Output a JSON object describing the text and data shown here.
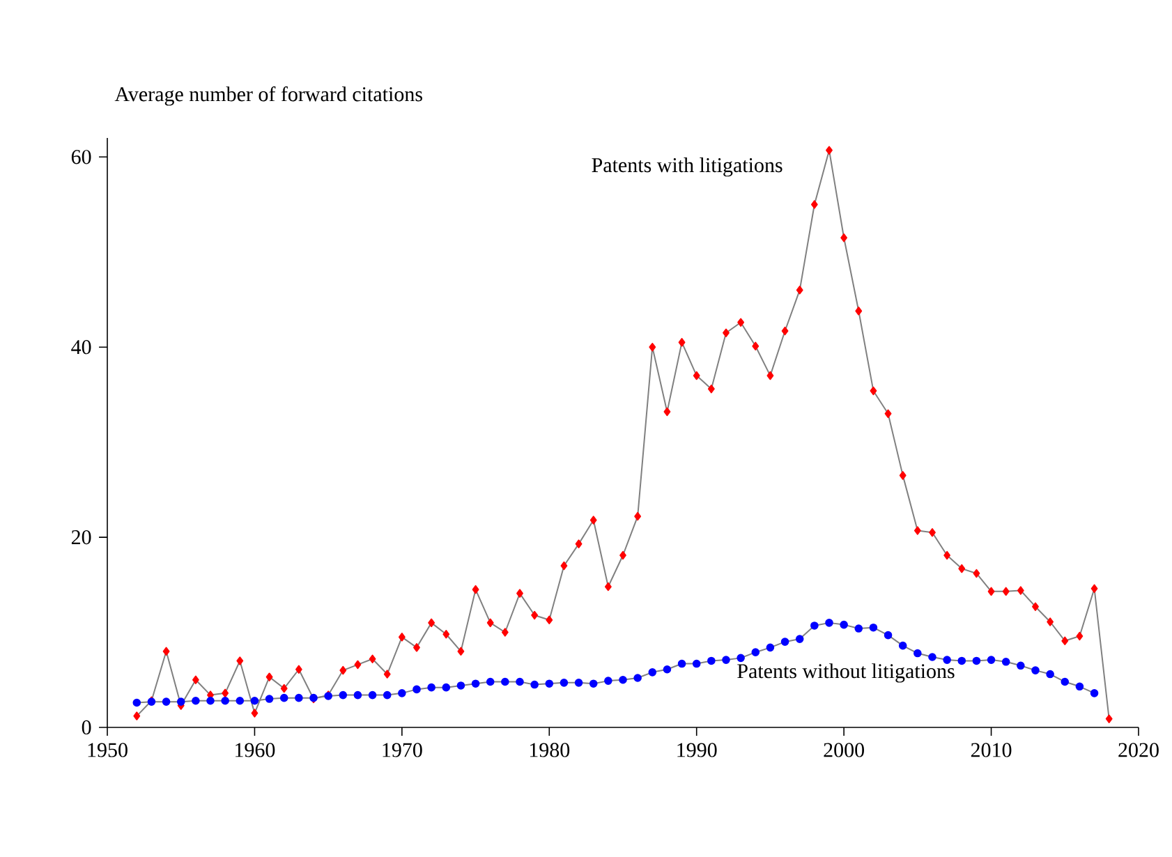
{
  "chart_data": {
    "type": "line",
    "ylabel": "Average number of forward citations",
    "x": [
      1952,
      1953,
      1954,
      1955,
      1956,
      1957,
      1958,
      1959,
      1960,
      1961,
      1962,
      1963,
      1964,
      1965,
      1966,
      1967,
      1968,
      1969,
      1970,
      1971,
      1972,
      1973,
      1974,
      1975,
      1976,
      1977,
      1978,
      1979,
      1980,
      1981,
      1982,
      1983,
      1984,
      1985,
      1986,
      1987,
      1988,
      1989,
      1990,
      1991,
      1992,
      1993,
      1994,
      1995,
      1996,
      1997,
      1998,
      1999,
      2000,
      2001,
      2002,
      2003,
      2004,
      2005,
      2006,
      2007,
      2008,
      2009,
      2010,
      2011,
      2012,
      2013,
      2014,
      2015,
      2016,
      2017,
      2018
    ],
    "series": [
      {
        "name": "Patents with litigations",
        "color": "#ff0000",
        "marker": "diamond",
        "values": [
          1.2,
          2.8,
          8.0,
          2.3,
          5.0,
          3.4,
          3.6,
          7.0,
          1.5,
          5.3,
          4.1,
          6.1,
          3.0,
          3.4,
          6.0,
          6.6,
          7.2,
          5.6,
          9.5,
          8.4,
          11.0,
          9.8,
          8.0,
          14.5,
          11.0,
          10.0,
          14.1,
          11.8,
          11.3,
          17.0,
          19.3,
          21.8,
          14.8,
          18.1,
          22.2,
          40.0,
          33.2,
          40.5,
          37.0,
          35.6,
          41.5,
          42.6,
          40.1,
          37.0,
          41.7,
          46.0,
          55.0,
          60.7,
          51.5,
          43.8,
          35.4,
          33.0,
          26.5,
          20.7,
          20.5,
          18.1,
          16.7,
          16.2,
          14.3,
          14.3,
          14.4,
          12.7,
          11.1,
          9.1,
          9.6,
          14.6,
          0.9
        ]
      },
      {
        "name": "Patents without litigations",
        "color": "#0000ff",
        "marker": "circle",
        "values": [
          2.6,
          2.7,
          2.7,
          2.7,
          2.8,
          2.8,
          2.8,
          2.8,
          2.8,
          3.0,
          3.1,
          3.1,
          3.1,
          3.3,
          3.4,
          3.4,
          3.4,
          3.4,
          3.6,
          4.0,
          4.2,
          4.2,
          4.4,
          4.6,
          4.8,
          4.8,
          4.8,
          4.5,
          4.6,
          4.7,
          4.7,
          4.6,
          4.9,
          5.0,
          5.2,
          5.8,
          6.1,
          6.7,
          6.7,
          7.0,
          7.1,
          7.3,
          7.9,
          8.4,
          9.0,
          9.3,
          10.7,
          11.0,
          10.8,
          10.4,
          10.5,
          9.7,
          8.6,
          7.8,
          7.4,
          7.1,
          7.0,
          7.0,
          7.1,
          6.9,
          6.5,
          6.0,
          5.6,
          4.8,
          4.3,
          3.6,
          null
        ]
      }
    ],
    "xlim": [
      1950,
      2020
    ],
    "xticks": [
      1950,
      1960,
      1970,
      1980,
      1990,
      2000,
      2010,
      2020
    ],
    "ylim": [
      0,
      62
    ],
    "yticks": [
      0,
      20,
      40,
      60
    ],
    "grid": false,
    "legend": false
  }
}
